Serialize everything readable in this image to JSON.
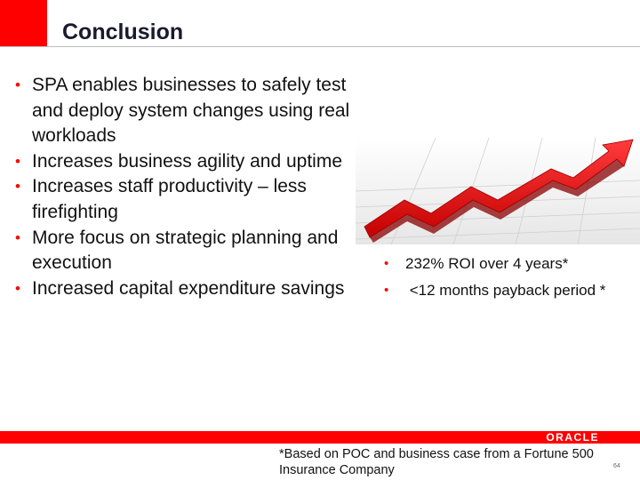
{
  "slide": {
    "title": "Conclusion",
    "left_bullets": [
      "SPA enables businesses to safely test and deploy system changes using real workloads",
      "Increases business agility and uptime",
      "Increases  staff productivity – less firefighting",
      "More focus on strategic planning and execution",
      "Increased capital expenditure savings"
    ],
    "right_bullets": [
      "232% ROI over 4 years*",
      " <12 months payback period *"
    ],
    "footnote": "*Based on POC and business case from a Fortune 500 Insurance Company",
    "page_number": "64",
    "logo_text": "ORACLE",
    "bullet_glyph": "•"
  },
  "colors": {
    "accent_red": "#ff0000",
    "text": "#111111"
  },
  "icons": {
    "chart_image": "red-arrow-growth-chart-icon"
  }
}
